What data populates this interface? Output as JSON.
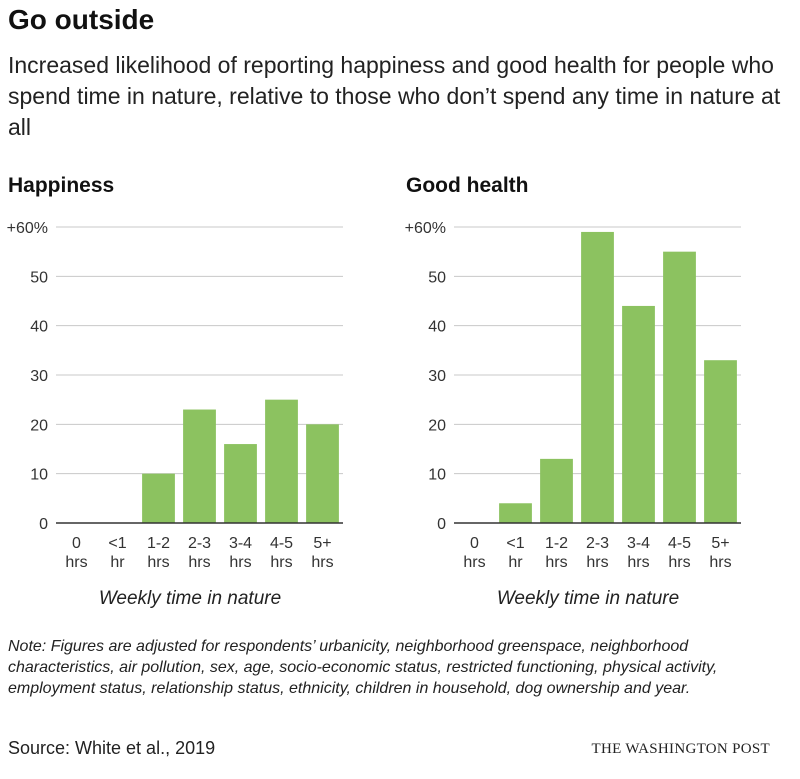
{
  "title": "Go outside",
  "subtitle": "Increased likelihood of reporting happiness and good health for people who spend time in nature, relative to those who don’t spend any time in nature at all",
  "colors": {
    "bar": "#8cc260",
    "grid": "#c8c8c8",
    "axis": "#333333"
  },
  "chart_data": [
    {
      "type": "bar",
      "title": "Happiness",
      "categories": [
        "0 hrs",
        "<1 hr",
        "1-2 hrs",
        "2-3 hrs",
        "3-4 hrs",
        "4-5 hrs",
        "5+ hrs"
      ],
      "category_lines": [
        [
          "0",
          "hrs"
        ],
        [
          "<1",
          "hr"
        ],
        [
          "1-2",
          "hrs"
        ],
        [
          "2-3",
          "hrs"
        ],
        [
          "3-4",
          "hrs"
        ],
        [
          "4-5",
          "hrs"
        ],
        [
          "5+",
          "hrs"
        ]
      ],
      "values": [
        0,
        0,
        10,
        23,
        16,
        25,
        20
      ],
      "ylim": [
        0,
        60
      ],
      "yticks": [
        0,
        10,
        20,
        30,
        40,
        50,
        60
      ],
      "ytick_labels": [
        "0",
        "10",
        "20",
        "30",
        "40",
        "50",
        "+60%"
      ],
      "xlabel": "Weekly time in nature",
      "ylabel": "",
      "grid": true
    },
    {
      "type": "bar",
      "title": "Good health",
      "categories": [
        "0 hrs",
        "<1 hr",
        "1-2 hrs",
        "2-3 hrs",
        "3-4 hrs",
        "4-5 hrs",
        "5+ hrs"
      ],
      "category_lines": [
        [
          "0",
          "hrs"
        ],
        [
          "<1",
          "hr"
        ],
        [
          "1-2",
          "hrs"
        ],
        [
          "2-3",
          "hrs"
        ],
        [
          "3-4",
          "hrs"
        ],
        [
          "4-5",
          "hrs"
        ],
        [
          "5+",
          "hrs"
        ]
      ],
      "values": [
        0,
        4,
        13,
        59,
        44,
        55,
        33
      ],
      "ylim": [
        0,
        60
      ],
      "yticks": [
        0,
        10,
        20,
        30,
        40,
        50,
        60
      ],
      "ytick_labels": [
        "0",
        "10",
        "20",
        "30",
        "40",
        "50",
        "+60%"
      ],
      "xlabel": "Weekly time in nature",
      "ylabel": "",
      "grid": true
    }
  ],
  "note": "Note: Figures are adjusted for respondents’ urbanicity, neighborhood greenspace, neighborhood characteristics, air pollution, sex, age, socio-economic status, restricted functioning, physical activity, employment status, relationship status, ethnicity, children in household, dog ownership and year.",
  "source": "Source: White et al., 2019",
  "brand": "THE WASHINGTON POST"
}
